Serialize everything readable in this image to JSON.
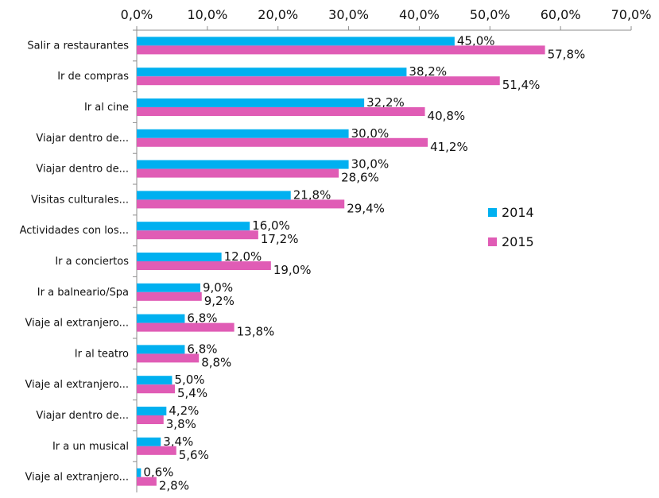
{
  "chart_data": {
    "type": "bar",
    "orientation": "horizontal",
    "categories": [
      "Salir a restaurantes",
      "Ir de compras",
      "Ir al cine",
      "Viajar dentro de...",
      "Viajar dentro de...",
      "Visitas culturales...",
      "Actividades con los...",
      "Ir a conciertos",
      "Ir a balneario/Spa",
      "Viaje al extranjero...",
      "Ir al teatro",
      "Viaje al extranjero...",
      "Viajar dentro de...",
      "Ir a un musical",
      "Viaje al extranjero..."
    ],
    "series": [
      {
        "name": "2014",
        "color": "#00B0F0",
        "values": [
          45.0,
          38.2,
          32.2,
          30.0,
          30.0,
          21.8,
          16.0,
          12.0,
          9.0,
          6.8,
          6.8,
          5.0,
          4.2,
          3.4,
          0.6
        ],
        "labels": [
          "45,0%",
          "38,2%",
          "32,2%",
          "30,0%",
          "30,0%",
          "21,8%",
          "16,0%",
          "12,0%",
          "9,0%",
          "6,8%",
          "6,8%",
          "5,0%",
          "4,2%",
          "3,4%",
          "0,6%"
        ]
      },
      {
        "name": "2015",
        "color": "#E05CB5",
        "values": [
          57.8,
          51.4,
          40.8,
          41.2,
          28.6,
          29.4,
          17.2,
          19.0,
          9.2,
          13.8,
          8.8,
          5.4,
          3.8,
          5.6,
          2.8
        ],
        "labels": [
          "57,8%",
          "51,4%",
          "40,8%",
          "41,2%",
          "28,6%",
          "29,4%",
          "17,2%",
          "19,0%",
          "9,2%",
          "13,8%",
          "8,8%",
          "5,4%",
          "3,8%",
          "5,6%",
          "2,8%"
        ]
      }
    ],
    "xlim": [
      0,
      70
    ],
    "xticks": [
      0,
      10,
      20,
      30,
      40,
      50,
      60,
      70
    ],
    "xtick_labels": [
      "0,0%",
      "10,0%",
      "20,0%",
      "30,0%",
      "40,0%",
      "50,0%",
      "60,0%",
      "70,0%"
    ],
    "x_axis_position": "top",
    "grid": false,
    "legend_position": "right"
  }
}
